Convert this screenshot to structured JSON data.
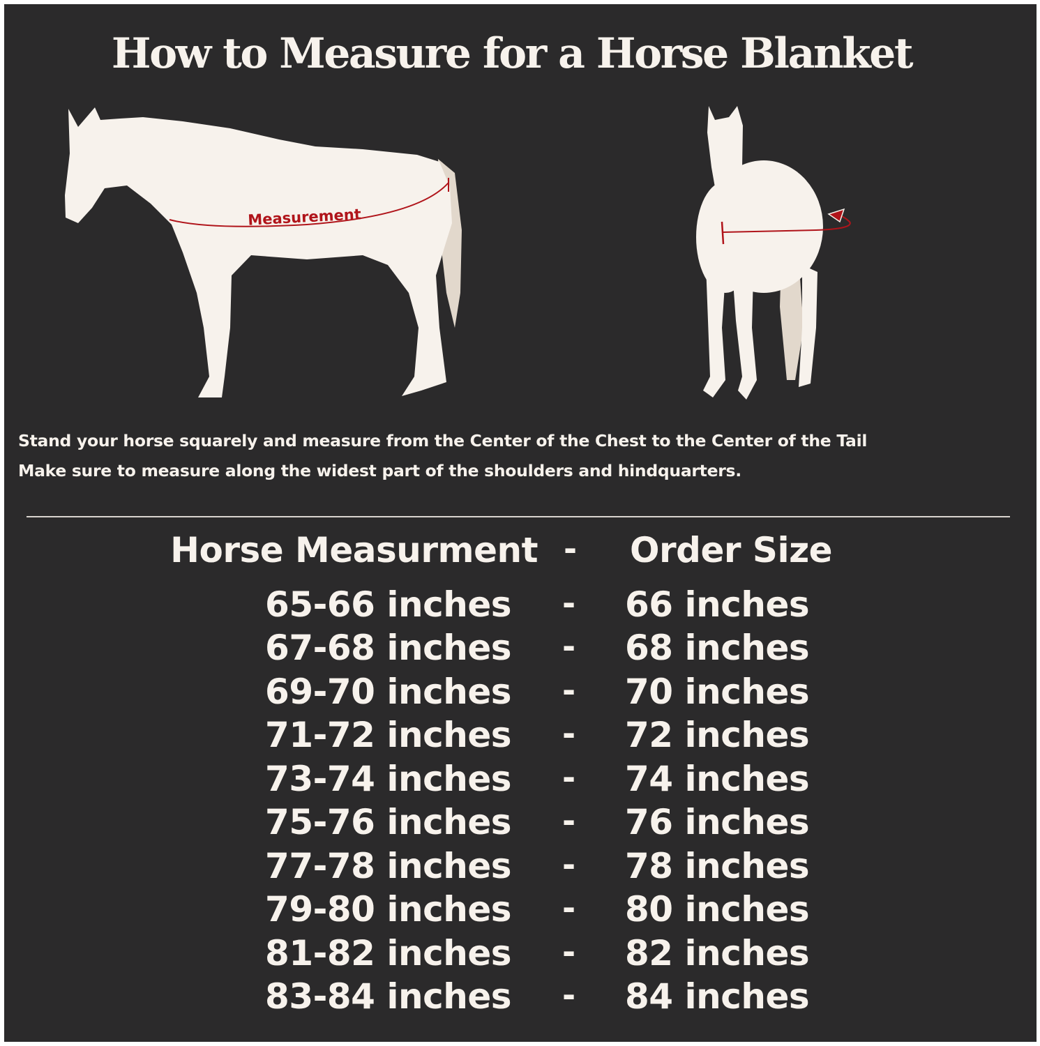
{
  "title": "How to Measure for a Horse Blanket",
  "diagram": {
    "side_label": "Measurement",
    "colors": {
      "background": "#2b2a2b",
      "horse": "#f7f2ec",
      "tail": "#e2d8cc",
      "measure_line": "#b0141a"
    }
  },
  "instructions": [
    "Stand your horse squarely and measure from the Center of the Chest to the Center of the Tail",
    "Make sure to measure along the widest part of the shoulders and hindquarters."
  ],
  "table": {
    "header": {
      "measurement": "Horse Measurment",
      "separator": "-",
      "size": "Order Size"
    },
    "rows": [
      {
        "measurement": "65-66 inches",
        "separator": "-",
        "size": "66 inches"
      },
      {
        "measurement": "67-68 inches",
        "separator": "-",
        "size": "68 inches"
      },
      {
        "measurement": "69-70 inches",
        "separator": "-",
        "size": "70 inches"
      },
      {
        "measurement": "71-72 inches",
        "separator": "-",
        "size": "72 inches"
      },
      {
        "measurement": "73-74 inches",
        "separator": "-",
        "size": "74 inches"
      },
      {
        "measurement": "75-76 inches",
        "separator": "-",
        "size": "76 inches"
      },
      {
        "measurement": "77-78 inches",
        "separator": "-",
        "size": "78 inches"
      },
      {
        "measurement": "79-80 inches",
        "separator": "-",
        "size": "80 inches"
      },
      {
        "measurement": "81-82 inches",
        "separator": "-",
        "size": "82 inches"
      },
      {
        "measurement": "83-84 inches",
        "separator": "-",
        "size": "84 inches"
      }
    ]
  }
}
